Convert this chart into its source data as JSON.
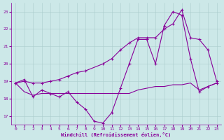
{
  "background_color": "#cce8e8",
  "grid_color": "#aacccc",
  "line_color": "#880099",
  "xlabel": "Windchill (Refroidissement éolien,°C)",
  "ylim": [
    16.5,
    23.5
  ],
  "xlim": [
    -0.5,
    23.5
  ],
  "yticks": [
    17,
    18,
    19,
    20,
    21,
    22,
    23
  ],
  "xticks": [
    0,
    1,
    2,
    3,
    4,
    5,
    6,
    7,
    8,
    9,
    10,
    11,
    12,
    13,
    14,
    15,
    16,
    17,
    18,
    19,
    20,
    21,
    22,
    23
  ],
  "s1_x": [
    0,
    1,
    2,
    3,
    4,
    5,
    6,
    7,
    8,
    9,
    10,
    11,
    12,
    13,
    14,
    15,
    16,
    17,
    18,
    19,
    20,
    21,
    22,
    23
  ],
  "s1_y": [
    18.9,
    19.1,
    18.1,
    18.5,
    18.3,
    18.1,
    18.4,
    17.8,
    17.4,
    16.7,
    16.6,
    17.2,
    18.6,
    20.0,
    21.4,
    21.4,
    20.0,
    22.2,
    23.0,
    22.8,
    20.3,
    18.4,
    18.7,
    18.9
  ],
  "s2_x": [
    0,
    1,
    2,
    3,
    4,
    5,
    6,
    7,
    8,
    9,
    10,
    11,
    12,
    13,
    14,
    15,
    16,
    17,
    18,
    19,
    20,
    21,
    22,
    23
  ],
  "s2_y": [
    18.9,
    18.4,
    18.2,
    18.3,
    18.3,
    18.3,
    18.3,
    18.3,
    18.3,
    18.3,
    18.3,
    18.3,
    18.3,
    18.3,
    18.5,
    18.6,
    18.7,
    18.7,
    18.8,
    18.8,
    18.9,
    18.5,
    18.7,
    18.9
  ],
  "s3_x": [
    0,
    1,
    2,
    3,
    4,
    5,
    6,
    7,
    8,
    10,
    11,
    12,
    13,
    14,
    15,
    16,
    17,
    18,
    19,
    20,
    21,
    22,
    23
  ],
  "s3_y": [
    18.9,
    19.0,
    18.9,
    18.9,
    19.0,
    19.1,
    19.3,
    19.5,
    19.6,
    20.0,
    20.3,
    20.8,
    21.2,
    21.5,
    21.5,
    21.5,
    22.0,
    22.3,
    23.1,
    21.5,
    21.4,
    20.8,
    19.0
  ]
}
